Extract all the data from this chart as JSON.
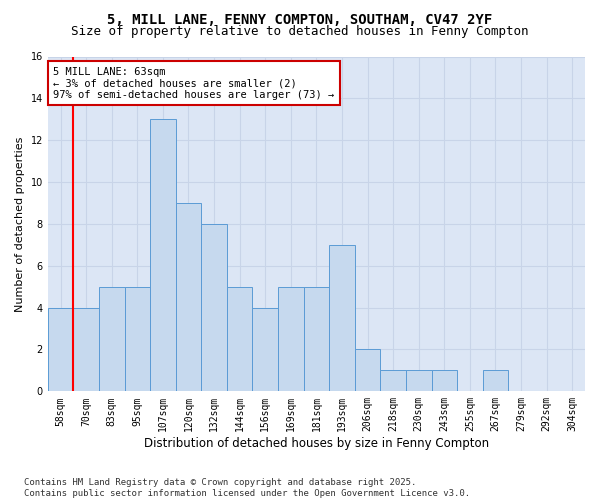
{
  "title_line1": "5, MILL LANE, FENNY COMPTON, SOUTHAM, CV47 2YF",
  "title_line2": "Size of property relative to detached houses in Fenny Compton",
  "xlabel": "Distribution of detached houses by size in Fenny Compton",
  "ylabel": "Number of detached properties",
  "categories": [
    "58sqm",
    "70sqm",
    "83sqm",
    "95sqm",
    "107sqm",
    "120sqm",
    "132sqm",
    "144sqm",
    "156sqm",
    "169sqm",
    "181sqm",
    "193sqm",
    "206sqm",
    "218sqm",
    "230sqm",
    "243sqm",
    "255sqm",
    "267sqm",
    "279sqm",
    "292sqm",
    "304sqm"
  ],
  "values": [
    4,
    4,
    5,
    5,
    13,
    9,
    8,
    5,
    4,
    5,
    5,
    7,
    2,
    1,
    1,
    1,
    0,
    1,
    0,
    0,
    0
  ],
  "bar_color": "#c6d9ee",
  "bar_edge_color": "#5b9bd5",
  "annotation_text": "5 MILL LANE: 63sqm\n← 3% of detached houses are smaller (2)\n97% of semi-detached houses are larger (73) →",
  "annotation_box_color": "white",
  "annotation_box_edge_color": "#cc0000",
  "ylim": [
    0,
    16
  ],
  "yticks": [
    0,
    2,
    4,
    6,
    8,
    10,
    12,
    14,
    16
  ],
  "grid_color": "#c8d4e8",
  "background_color": "#dce6f5",
  "footer": "Contains HM Land Registry data © Crown copyright and database right 2025.\nContains public sector information licensed under the Open Government Licence v3.0.",
  "title_fontsize": 10,
  "subtitle_fontsize": 9,
  "xlabel_fontsize": 8.5,
  "ylabel_fontsize": 8,
  "tick_fontsize": 7,
  "annotation_fontsize": 7.5,
  "footer_fontsize": 6.5
}
